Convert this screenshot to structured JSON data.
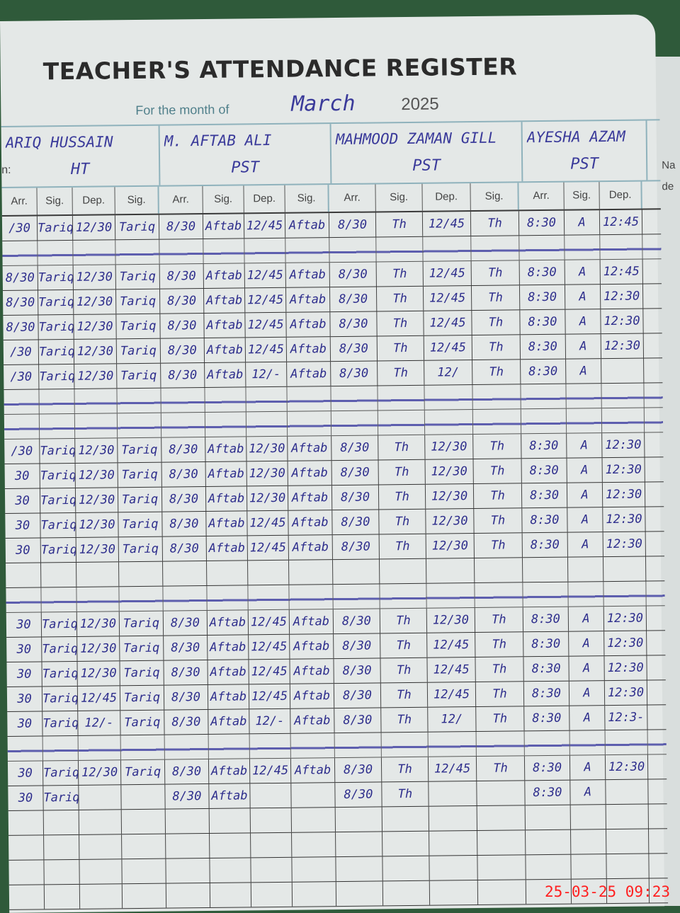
{
  "title": "TEACHER'S ATTENDANCE REGISTER",
  "month_label": "For the month of",
  "month": "March",
  "year": "2025",
  "teachers": [
    {
      "name": "ARIQ HUSSAIN",
      "designation_label": "n:",
      "designation": "HT"
    },
    {
      "name": "M. AFTAB ALI",
      "designation": "PST"
    },
    {
      "name": "MAHMOOD ZAMAN GILL",
      "designation": "PST"
    },
    {
      "name": "AYESHA AZAM",
      "designation": "PST"
    }
  ],
  "column_headers": [
    "Arr.",
    "Sig.",
    "Dep.",
    "Sig."
  ],
  "edge_column": {
    "label1": "Na",
    "label2": "de"
  },
  "rows": [
    {
      "cells": [
        "/30",
        "Tariq",
        "12/30",
        "Tariq",
        "8/30",
        "Aftab",
        "12/45",
        "Aftab",
        "8/30",
        "Th",
        "12/45",
        "Th",
        "8:30",
        "A",
        "12:45"
      ]
    },
    {
      "struck": true
    },
    {
      "cells": [
        "8/30",
        "Tariq",
        "12/30",
        "Tariq",
        "8/30",
        "Aftab",
        "12/45",
        "Aftab",
        "8/30",
        "Th",
        "12/45",
        "Th",
        "8:30",
        "A",
        "12:45"
      ]
    },
    {
      "cells": [
        "8/30",
        "Tariq",
        "12/30",
        "Tariq",
        "8/30",
        "Aftab",
        "12/45",
        "Aftab",
        "8/30",
        "Th",
        "12/45",
        "Th",
        "8:30",
        "A",
        "12:30"
      ]
    },
    {
      "cells": [
        "8/30",
        "Tariq",
        "12/30",
        "Tariq",
        "8/30",
        "Aftab",
        "12/45",
        "Aftab",
        "8/30",
        "Th",
        "12/45",
        "Th",
        "8:30",
        "A",
        "12:30"
      ]
    },
    {
      "cells": [
        "/30",
        "Tariq",
        "12/30",
        "Tariq",
        "8/30",
        "Aftab",
        "12/45",
        "Aftab",
        "8/30",
        "Th",
        "12/45",
        "Th",
        "8:30",
        "A",
        "12:30"
      ]
    },
    {
      "cells": [
        "/30",
        "Tariq",
        "12/30",
        "Tariq",
        "8/30",
        "Aftab",
        "12/-",
        "Aftab",
        "8/30",
        "Th",
        "12/",
        "Th",
        "8:30",
        "A",
        ""
      ]
    },
    {
      "struck": true
    },
    {
      "struck": true
    },
    {
      "cells": [
        "/30",
        "Tariq",
        "12/30",
        "Tariq",
        "8/30",
        "Aftab",
        "12/30",
        "Aftab",
        "8/30",
        "Th",
        "12/30",
        "Th",
        "8:30",
        "A",
        "12:30"
      ]
    },
    {
      "cells": [
        "30",
        "Tariq",
        "12/30",
        "Tariq",
        "8/30",
        "Aftab",
        "12/30",
        "Aftab",
        "8/30",
        "Th",
        "12/30",
        "Th",
        "8:30",
        "A",
        "12:30"
      ]
    },
    {
      "cells": [
        "30",
        "Tariq",
        "12/30",
        "Tariq",
        "8/30",
        "Aftab",
        "12/30",
        "Aftab",
        "8/30",
        "Th",
        "12/30",
        "Th",
        "8:30",
        "A",
        "12:30"
      ]
    },
    {
      "cells": [
        "30",
        "Tariq",
        "12/30",
        "Tariq",
        "8/30",
        "Aftab",
        "12/45",
        "Aftab",
        "8/30",
        "Th",
        "12/30",
        "Th",
        "8:30",
        "A",
        "12:30"
      ]
    },
    {
      "cells": [
        "30",
        "Tariq",
        "12/30",
        "Tariq",
        "8/30",
        "Aftab",
        "12/45",
        "Aftab",
        "8/30",
        "Th",
        "12/30",
        "Th",
        "8:30",
        "A",
        "12:30"
      ]
    },
    {
      "cells": [
        "",
        "",
        "",
        "",
        "",
        "",
        "",
        "",
        "",
        "",
        "",
        "",
        "",
        "",
        ""
      ]
    },
    {
      "struck": true
    },
    {
      "cells": [
        "30",
        "Tariq",
        "12/30",
        "Tariq",
        "8/30",
        "Aftab",
        "12/45",
        "Aftab",
        "8/30",
        "Th",
        "12/30",
        "Th",
        "8:30",
        "A",
        "12:30"
      ]
    },
    {
      "cells": [
        "30",
        "Tariq",
        "12/30",
        "Tariq",
        "8/30",
        "Aftab",
        "12/45",
        "Aftab",
        "8/30",
        "Th",
        "12/45",
        "Th",
        "8:30",
        "A",
        "12:30"
      ]
    },
    {
      "cells": [
        "30",
        "Tariq",
        "12/30",
        "Tariq",
        "8/30",
        "Aftab",
        "12/45",
        "Aftab",
        "8/30",
        "Th",
        "12/45",
        "Th",
        "8:30",
        "A",
        "12:30"
      ]
    },
    {
      "cells": [
        "30",
        "Tariq",
        "12/45",
        "Tariq",
        "8/30",
        "Aftab",
        "12/45",
        "Aftab",
        "8/30",
        "Th",
        "12/45",
        "Th",
        "8:30",
        "A",
        "12:30"
      ]
    },
    {
      "cells": [
        "30",
        "Tariq",
        "12/-",
        "Tariq",
        "8/30",
        "Aftab",
        "12/-",
        "Aftab",
        "8/30",
        "Th",
        "12/",
        "Th",
        "8:30",
        "A",
        "12:3-"
      ]
    },
    {
      "struck": true
    },
    {
      "cells": [
        "30",
        "Tariq",
        "12/30",
        "Tariq",
        "8/30",
        "Aftab",
        "12/45",
        "Aftab",
        "8/30",
        "Th",
        "12/45",
        "Th",
        "8:30",
        "A",
        "12:30"
      ]
    },
    {
      "cells": [
        "30",
        "Tariq",
        "",
        "",
        "8/30",
        "Aftab",
        "",
        "",
        "8/30",
        "Th",
        "",
        "",
        "8:30",
        "A",
        ""
      ]
    },
    {
      "cells": [
        "",
        "",
        "",
        "",
        "",
        "",
        "",
        "",
        "",
        "",
        "",
        "",
        "",
        "",
        ""
      ]
    },
    {
      "cells": [
        "",
        "",
        "",
        "",
        "",
        "",
        "",
        "",
        "",
        "",
        "",
        "",
        "",
        "",
        ""
      ]
    },
    {
      "cells": [
        "",
        "",
        "",
        "",
        "",
        "",
        "",
        "",
        "",
        "",
        "",
        "",
        "",
        "",
        ""
      ]
    },
    {
      "cells": [
        "",
        "",
        "",
        "",
        "",
        "",
        "",
        "",
        "",
        "",
        "",
        "",
        "",
        "",
        ""
      ]
    }
  ],
  "timestamp": "25-03-25  09:23",
  "colors": {
    "ink": "#2d2d8c",
    "ruling": "#8fb2bc",
    "paper": "#e4e8e7",
    "timestamp": "#ff2020"
  }
}
